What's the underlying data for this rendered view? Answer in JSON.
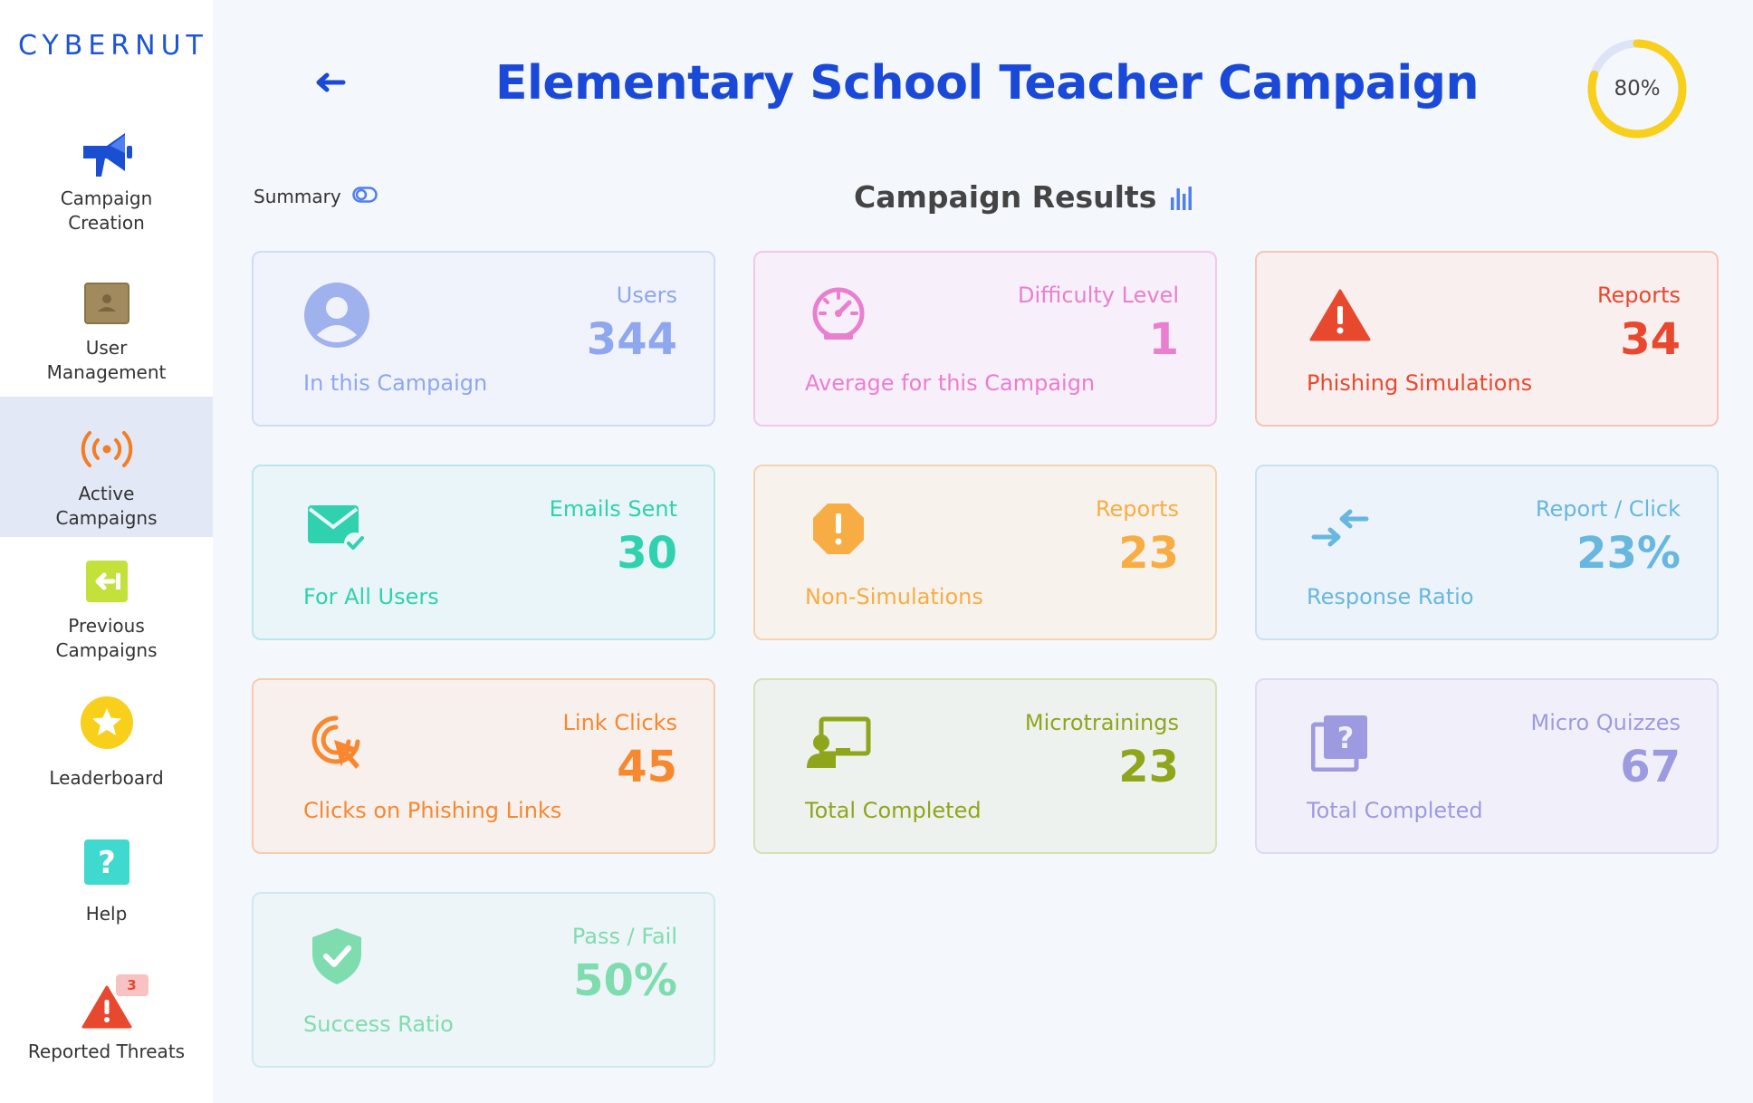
{
  "brand": {
    "logo": "CYBERNUT"
  },
  "sidebar": {
    "items": [
      {
        "label": "Campaign Creation",
        "icon": "megaphone-icon",
        "active": false
      },
      {
        "label": "User Management",
        "icon": "user-card-icon",
        "active": false
      },
      {
        "label": "Active Campaigns",
        "icon": "broadcast-icon",
        "active": true
      },
      {
        "label": "Previous Campaigns",
        "icon": "back-arrow-icon",
        "active": false
      },
      {
        "label": "Leaderboard",
        "icon": "star-icon",
        "active": false
      },
      {
        "label": "Help",
        "icon": "question-icon",
        "active": false
      },
      {
        "label": "Reported Threats",
        "icon": "warning-icon",
        "active": false,
        "badge": "3"
      }
    ]
  },
  "header": {
    "title": "Elementary School Teacher Campaign",
    "progress": {
      "value": 0.8,
      "label": "80%"
    }
  },
  "summary_toggle": {
    "label": "Summary"
  },
  "results": {
    "title": "Campaign Results"
  },
  "cards": [
    {
      "label": "Users",
      "value": "344",
      "sub": "In this Campaign",
      "icon": "user-icon",
      "color": "#8ea7ee"
    },
    {
      "label": "Difficulty Level",
      "value": "1",
      "sub": "Average for this Campaign",
      "icon": "speedometer-icon",
      "color": "#e97fd0"
    },
    {
      "label": "Reports",
      "value": "34",
      "sub": "Phishing Simulations",
      "icon": "warning-triangle-icon",
      "color": "#e8482e"
    },
    {
      "label": "Emails Sent",
      "value": "30",
      "sub": "For All Users",
      "icon": "email-check-icon",
      "color": "#2fd1ae"
    },
    {
      "label": "Reports",
      "value": "23",
      "sub": "Non-Simulations",
      "icon": "alert-octagon-icon",
      "color": "#f7ad44"
    },
    {
      "label": "Report / Click",
      "value": "23%",
      "sub": "Response Ratio",
      "icon": "compress-arrows-icon",
      "color": "#67b7e0"
    },
    {
      "label": "Link Clicks",
      "value": "45",
      "sub": "Clicks on Phishing Links",
      "icon": "click-target-icon",
      "color": "#f78830"
    },
    {
      "label": "Microtrainings",
      "value": "23",
      "sub": "Total Completed",
      "icon": "presenter-icon",
      "color": "#8fa51c"
    },
    {
      "label": "Micro Quizzes",
      "value": "67",
      "sub": "Total Completed",
      "icon": "quiz-cards-icon",
      "color": "#9d9ae0"
    },
    {
      "label": "Pass / Fail",
      "value": "50%",
      "sub": "Success Ratio",
      "icon": "shield-check-icon",
      "color": "#7fdcae"
    }
  ]
}
